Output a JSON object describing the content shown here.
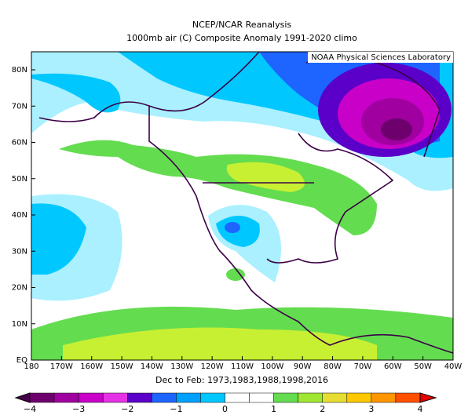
{
  "header": {
    "title": "NCEP/NCAR Reanalysis",
    "subtitle": "1000mb air (C) Composite Anomaly 1991-2020 climo"
  },
  "credit": "NOAA Physical Sciences Laboratory",
  "map": {
    "lat_labels": [
      "80N",
      "70N",
      "60N",
      "50N",
      "40N",
      "30N",
      "20N",
      "10N",
      "EQ"
    ],
    "lon_labels": [
      "180",
      "170W",
      "160W",
      "150W",
      "140W",
      "130W",
      "120W",
      "110W",
      "100W",
      "90W",
      "80W",
      "70W",
      "60W",
      "50W",
      "40W"
    ]
  },
  "caption": "Dec to Feb: 1973,1983,1988,1998,2016",
  "colorbar": {
    "labels": [
      "−4",
      "−3",
      "−2",
      "−1",
      "0",
      "1",
      "2",
      "3",
      "4"
    ]
  }
}
